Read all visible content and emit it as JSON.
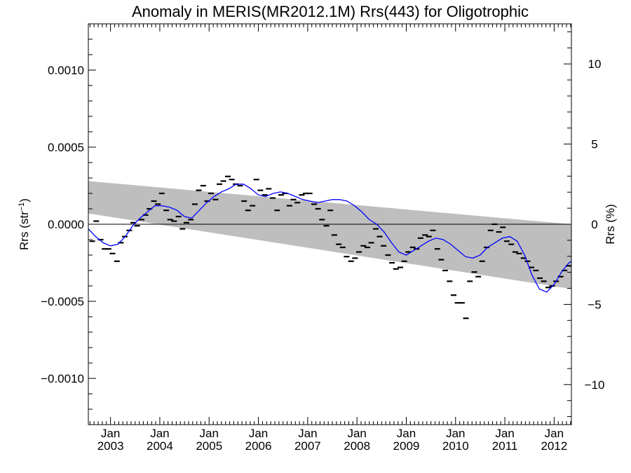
{
  "chart_data": {
    "type": "line",
    "title": "Anomaly in MERIS(MR2012.1M) Rrs(443) for Oligotrophic",
    "ylabel_main": "Rrs (str",
    "ylabel_sup": "−1",
    "ylabel_close": ")",
    "y2label": "Rrs (%)",
    "ylim": [
      -0.0013,
      0.0013
    ],
    "y2lim": [
      -12.5,
      12.5
    ],
    "xlim": [
      2002.55,
      2012.35
    ],
    "yticks": [
      {
        "value": 0.001,
        "label": "0.0010"
      },
      {
        "value": 0.0005,
        "label": "0.0005"
      },
      {
        "value": 0.0,
        "label": "0.0000"
      },
      {
        "value": -0.0005,
        "label": "−0.0005"
      },
      {
        "value": -0.001,
        "label": "−0.0010"
      }
    ],
    "y2ticks": [
      {
        "value": 10,
        "label": "10"
      },
      {
        "value": 5,
        "label": "5"
      },
      {
        "value": 0,
        "label": "0"
      },
      {
        "value": -5,
        "label": "−5"
      },
      {
        "value": -10,
        "label": "−10"
      }
    ],
    "xticks": [
      {
        "value": 2003.0,
        "top": "Jan",
        "bottom": "2003"
      },
      {
        "value": 2004.0,
        "top": "Jan",
        "bottom": "2004"
      },
      {
        "value": 2005.0,
        "top": "Jan",
        "bottom": "2005"
      },
      {
        "value": 2006.0,
        "top": "Jan",
        "bottom": "2006"
      },
      {
        "value": 2007.0,
        "top": "Jan",
        "bottom": "2007"
      },
      {
        "value": 2008.0,
        "top": "Jan",
        "bottom": "2008"
      },
      {
        "value": 2009.0,
        "top": "Jan",
        "bottom": "2009"
      },
      {
        "value": 2010.0,
        "top": "Jan",
        "bottom": "2010"
      },
      {
        "value": 2011.0,
        "top": "Jan",
        "bottom": "2011"
      },
      {
        "value": 2012.0,
        "top": "Jan",
        "bottom": "2012"
      }
    ],
    "band": {
      "x_start": 2002.55,
      "x_end": 2012.35,
      "upper_start": 0.00028,
      "upper_end": 0.0,
      "lower_start": 7e-05,
      "lower_end": -0.00042
    },
    "monthly_points": {
      "x": [
        2002.63,
        2002.71,
        2002.8,
        2002.88,
        2002.96,
        2003.04,
        2003.13,
        2003.21,
        2003.29,
        2003.38,
        2003.46,
        2003.54,
        2003.63,
        2003.71,
        2003.79,
        2003.88,
        2003.96,
        2004.04,
        2004.13,
        2004.21,
        2004.29,
        2004.38,
        2004.46,
        2004.54,
        2004.63,
        2004.71,
        2004.79,
        2004.88,
        2004.96,
        2005.04,
        2005.13,
        2005.21,
        2005.29,
        2005.38,
        2005.46,
        2005.54,
        2005.63,
        2005.71,
        2005.79,
        2005.88,
        2005.96,
        2006.04,
        2006.13,
        2006.21,
        2006.29,
        2006.38,
        2006.46,
        2006.54,
        2006.63,
        2006.71,
        2006.79,
        2006.88,
        2006.96,
        2007.04,
        2007.13,
        2007.21,
        2007.29,
        2007.38,
        2007.46,
        2007.54,
        2007.63,
        2007.71,
        2007.79,
        2007.88,
        2007.96,
        2008.04,
        2008.13,
        2008.21,
        2008.29,
        2008.38,
        2008.46,
        2008.54,
        2008.63,
        2008.71,
        2008.79,
        2008.88,
        2008.96,
        2009.04,
        2009.13,
        2009.21,
        2009.29,
        2009.38,
        2009.46,
        2009.54,
        2009.63,
        2009.71,
        2009.79,
        2009.88,
        2009.96,
        2010.04,
        2010.13,
        2010.21,
        2010.29,
        2010.38,
        2010.46,
        2010.54,
        2010.63,
        2010.71,
        2010.79,
        2010.88,
        2010.96,
        2011.04,
        2011.13,
        2011.21,
        2011.29,
        2011.38,
        2011.46,
        2011.54,
        2011.63,
        2011.71,
        2011.79,
        2011.88,
        2011.96,
        2012.04,
        2012.13,
        2012.21,
        2012.29
      ],
      "y": [
        -0.00011,
        2e-05,
        -0.0001,
        -0.00016,
        -0.00016,
        -0.00019,
        -0.00024,
        -0.00012,
        -8e-05,
        -4e-05,
        1e-05,
        -1e-05,
        3e-05,
        6e-05,
        0.0001,
        0.00015,
        0.00013,
        0.0002,
        9e-05,
        3e-05,
        2e-05,
        5e-05,
        -3e-05,
        1e-05,
        3e-05,
        0.00013,
        0.00022,
        0.00025,
        0.00015,
        0.0002,
        0.00016,
        0.00026,
        0.00028,
        0.00031,
        0.00029,
        0.00026,
        0.00025,
        0.00015,
        9e-05,
        0.00012,
        0.00029,
        0.00022,
        0.00019,
        0.00023,
        0.00017,
        9e-05,
        0.00019,
        0.0002,
        0.00012,
        0.00016,
        0.00014,
        0.00019,
        0.0002,
        0.0002,
        0.00013,
        0.0001,
        3e-05,
        -1e-05,
        9e-05,
        -7e-05,
        -0.00013,
        -0.00015,
        -0.00021,
        -0.00024,
        -0.00022,
        -0.00018,
        -0.00014,
        -0.00015,
        -0.00012,
        -3e-05,
        -8e-05,
        -0.00014,
        -0.0002,
        -0.00025,
        -0.00029,
        -0.00028,
        -0.00024,
        -0.00018,
        -0.00015,
        -0.00016,
        -9e-05,
        -7e-05,
        -8e-05,
        -4e-05,
        -0.00016,
        -0.00023,
        -0.0003,
        -0.00037,
        -0.00046,
        -0.00051,
        -0.00051,
        -0.00061,
        -0.00037,
        -0.00031,
        -0.00034,
        -0.00024,
        -0.00015,
        -4e-05,
        0.0,
        -5e-05,
        -2e-05,
        -0.00011,
        -0.00013,
        -0.00018,
        -0.00019,
        -0.00022,
        -0.00024,
        -0.00028,
        -0.0003,
        -0.00035,
        -0.00037,
        -0.00041,
        -0.0004,
        -0.00037,
        -0.00034,
        -0.0003,
        -0.00027
      ]
    },
    "smooth_curve": {
      "color": "#0000ff",
      "x": [
        2002.55,
        2002.7,
        2002.85,
        2003.0,
        2003.15,
        2003.3,
        2003.45,
        2003.6,
        2003.75,
        2003.9,
        2004.05,
        2004.2,
        2004.35,
        2004.5,
        2004.65,
        2004.8,
        2004.95,
        2005.1,
        2005.25,
        2005.4,
        2005.55,
        2005.7,
        2005.85,
        2006.0,
        2006.15,
        2006.3,
        2006.45,
        2006.6,
        2006.75,
        2006.9,
        2007.05,
        2007.2,
        2007.35,
        2007.5,
        2007.65,
        2007.8,
        2007.95,
        2008.1,
        2008.25,
        2008.4,
        2008.55,
        2008.7,
        2008.85,
        2009.0,
        2009.15,
        2009.3,
        2009.45,
        2009.6,
        2009.75,
        2009.9,
        2010.05,
        2010.2,
        2010.35,
        2010.5,
        2010.65,
        2010.8,
        2010.95,
        2011.1,
        2011.25,
        2011.4,
        2011.55,
        2011.7,
        2011.85,
        2012.0,
        2012.15,
        2012.3,
        2012.35
      ],
      "y": [
        -3e-05,
        -8e-05,
        -0.00012,
        -0.00014,
        -0.00013,
        -8e-05,
        -1e-05,
        4e-05,
        8e-05,
        0.00012,
        0.00012,
        0.00011,
        9e-05,
        5e-05,
        4e-05,
        9e-05,
        0.00014,
        0.00018,
        0.00021,
        0.00023,
        0.00026,
        0.00026,
        0.00023,
        0.00019,
        0.00018,
        0.0002,
        0.00021,
        0.0002,
        0.00018,
        0.00016,
        0.00015,
        0.00014,
        0.00015,
        0.00016,
        0.00016,
        0.00015,
        0.00012,
        8e-05,
        3e-05,
        0.0,
        -5e-05,
        -0.00012,
        -0.00018,
        -0.0002,
        -0.00017,
        -0.00014,
        -0.00011,
        -9e-05,
        -0.0001,
        -0.00013,
        -0.00017,
        -0.00021,
        -0.00022,
        -0.0002,
        -0.00015,
        -0.00012,
        -9e-05,
        -8e-05,
        -0.00011,
        -0.0002,
        -0.00033,
        -0.00042,
        -0.00044,
        -0.00039,
        -0.00031,
        -0.00025,
        -0.00024
      ]
    }
  }
}
